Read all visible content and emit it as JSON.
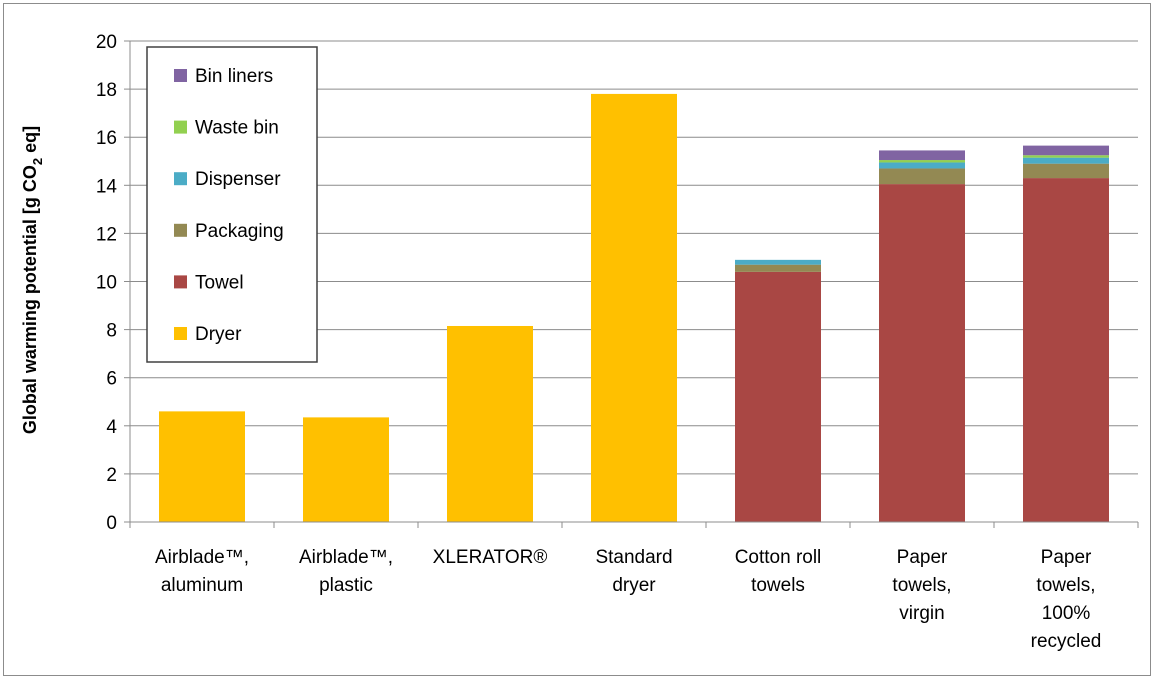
{
  "chart_data": {
    "type": "bar",
    "stacked": true,
    "categories": [
      [
        "Airblade™,",
        "aluminum"
      ],
      [
        "Airblade™,",
        "plastic"
      ],
      [
        "XLERATOR®"
      ],
      [
        "Standard",
        "dryer"
      ],
      [
        "Cotton roll",
        "towels"
      ],
      [
        "Paper",
        "towels,",
        "virgin"
      ],
      [
        "Paper",
        "towels,",
        "100%",
        "recycled"
      ]
    ],
    "ylabel": {
      "prefix": "Global warming potential [g CO",
      "sub": "2",
      "suffix": " eq]"
    },
    "ylim": [
      0,
      20
    ],
    "yticks": [
      "0",
      "2",
      "4",
      "6",
      "8",
      "10",
      "12",
      "14",
      "16",
      "18",
      "20"
    ],
    "grid": true,
    "legend_position": "top-left",
    "series": [
      {
        "name": "Dryer",
        "color": "#ffc000",
        "values": [
          4.6,
          4.35,
          8.15,
          17.8,
          0,
          0,
          0
        ]
      },
      {
        "name": "Towel",
        "color": "#a94744",
        "values": [
          0,
          0,
          0,
          0,
          10.4,
          14.05,
          14.3
        ]
      },
      {
        "name": "Packaging",
        "color": "#938953",
        "values": [
          0,
          0,
          0,
          0,
          0.3,
          0.65,
          0.6
        ]
      },
      {
        "name": "Dispenser",
        "color": "#4bacc6",
        "values": [
          0,
          0,
          0,
          0,
          0.2,
          0.25,
          0.25
        ]
      },
      {
        "name": "Waste bin",
        "color": "#92d050",
        "values": [
          0,
          0,
          0,
          0,
          0,
          0.1,
          0.1
        ]
      },
      {
        "name": "Bin liners",
        "color": "#8064a2",
        "values": [
          0,
          0,
          0,
          0,
          0,
          0.4,
          0.4
        ]
      }
    ]
  }
}
